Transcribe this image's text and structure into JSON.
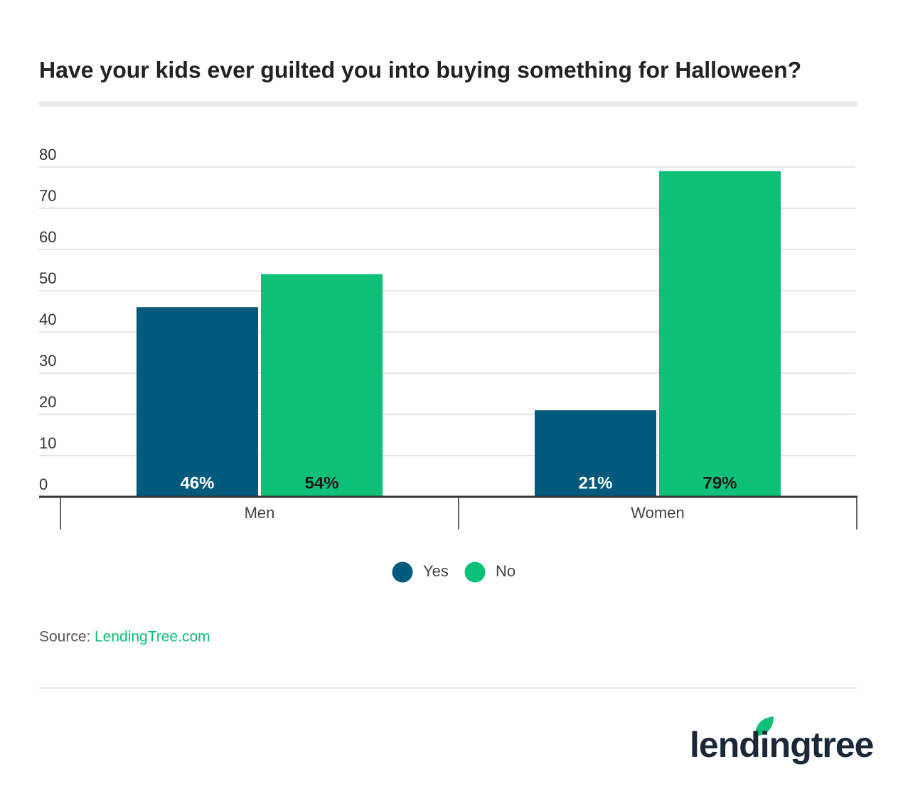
{
  "chart_data": {
    "type": "bar",
    "title": "Have your kids ever guilted you into buying something for Halloween?",
    "categories": [
      "Men",
      "Women"
    ],
    "series": [
      {
        "name": "Yes",
        "color": "#015a7c",
        "values": [
          46,
          21
        ],
        "value_labels": [
          "46%",
          "21%"
        ]
      },
      {
        "name": "No",
        "color": "#0cc078",
        "values": [
          54,
          79
        ],
        "value_labels": [
          "54%",
          "79%"
        ]
      }
    ],
    "ylim": [
      0,
      80
    ],
    "yticks": [
      0,
      10,
      20,
      30,
      40,
      50,
      60,
      70,
      80
    ],
    "grid": true,
    "legend": "bottom",
    "source_label": "Source:",
    "source": "LendingTree.com",
    "logo": "lendingtree"
  }
}
